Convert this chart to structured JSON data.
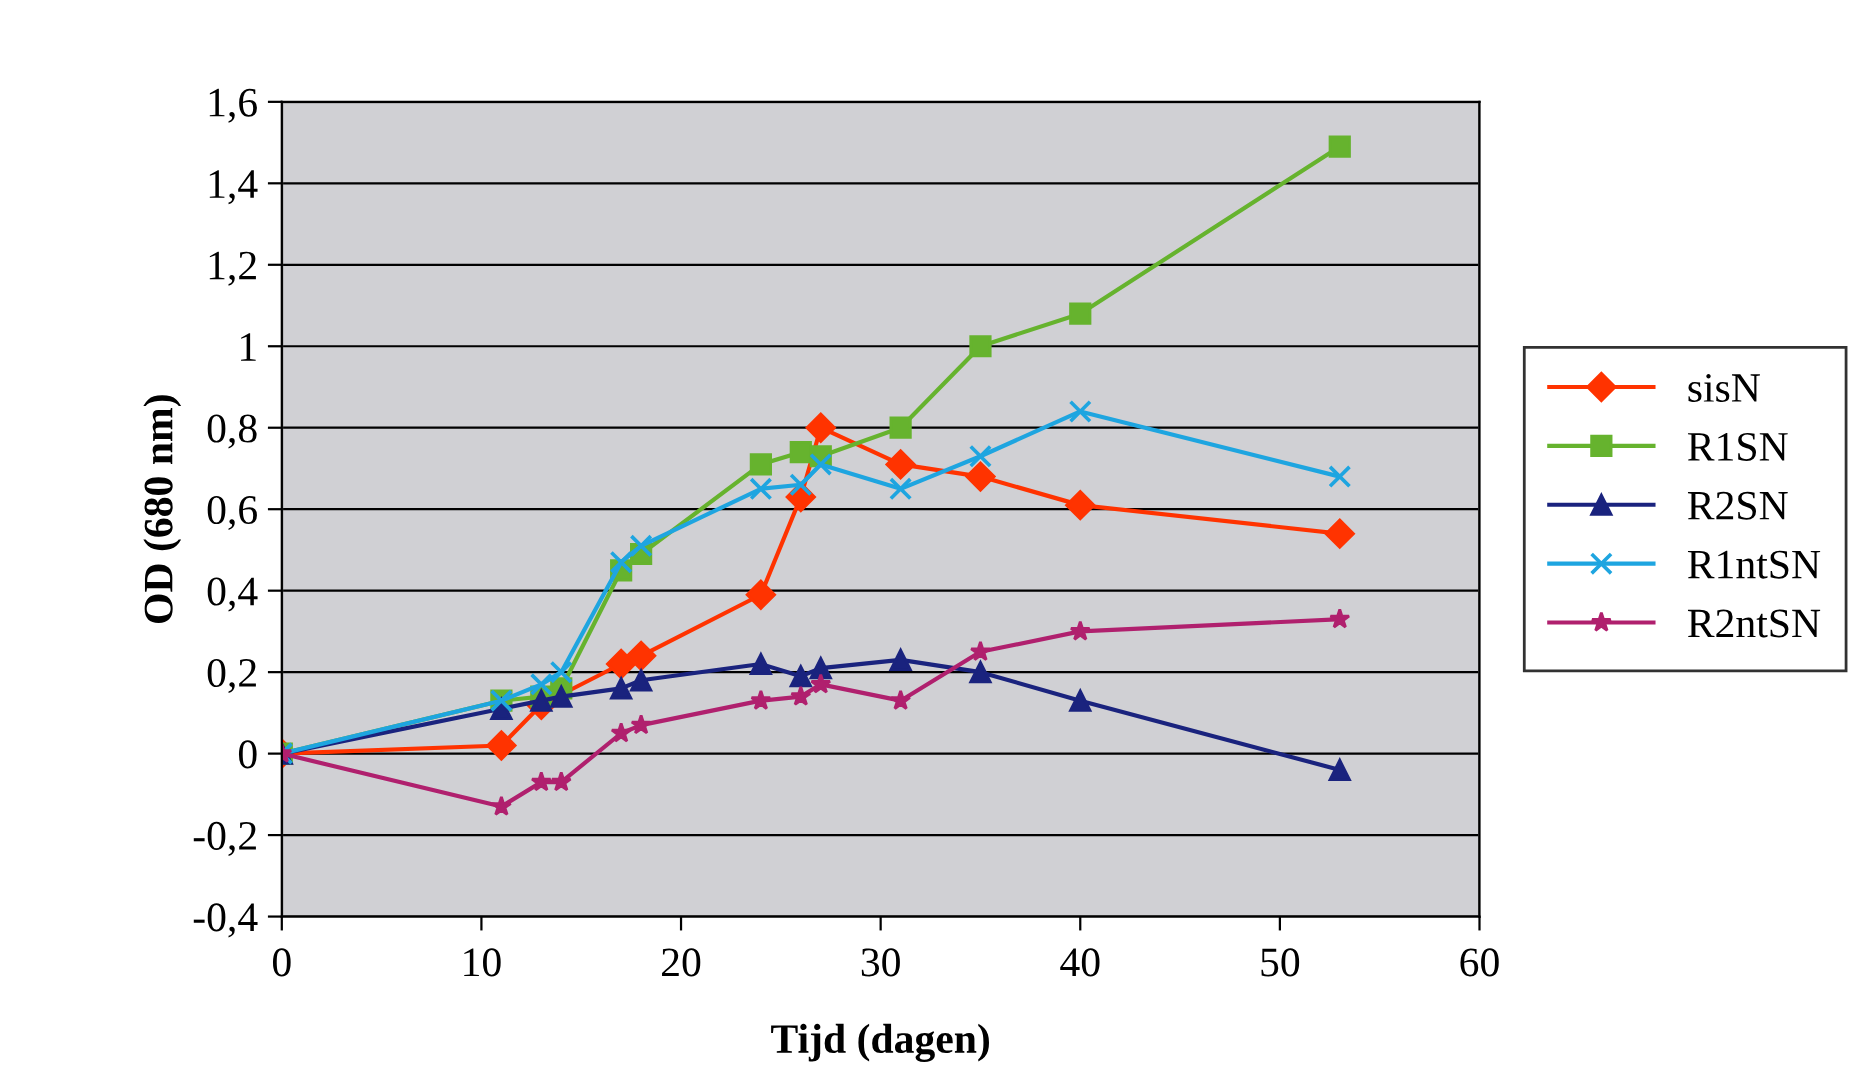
{
  "chart_data": {
    "type": "line",
    "xlabel": "Tijd (dagen)",
    "ylabel": "OD (680 nm)",
    "xlim": [
      0,
      60
    ],
    "xticks": [
      0,
      10,
      20,
      30,
      40,
      50,
      60
    ],
    "ylim": [
      -0.4,
      1.6
    ],
    "yticks": [
      {
        "value": -0.4,
        "label": "-0,4"
      },
      {
        "value": -0.2,
        "label": "-0,2"
      },
      {
        "value": 0,
        "label": "0"
      },
      {
        "value": 0.2,
        "label": "0,2"
      },
      {
        "value": 0.4,
        "label": "0,4"
      },
      {
        "value": 0.6,
        "label": "0,6"
      },
      {
        "value": 0.8,
        "label": "0,8"
      },
      {
        "value": 1,
        "label": "1"
      },
      {
        "value": 1.2,
        "label": "1,2"
      },
      {
        "value": 1.4,
        "label": "1,4"
      },
      {
        "value": 1.6,
        "label": "1,6"
      }
    ],
    "grid": "y",
    "legend": "right",
    "line_style": "solid",
    "series": [
      {
        "name": "sisN",
        "color": "#ff3300",
        "marker": "diamond",
        "x": [
          0,
          11,
          13,
          17,
          18,
          24,
          26,
          27,
          31,
          35,
          40,
          53
        ],
        "values": [
          0,
          0.02,
          0.12,
          0.22,
          0.24,
          0.39,
          0.63,
          0.8,
          0.71,
          0.68,
          0.61,
          0.54
        ]
      },
      {
        "name": "R1SN",
        "color": "#66b32e",
        "marker": "square",
        "x": [
          0,
          11,
          13,
          14,
          17,
          18,
          24,
          26,
          27,
          31,
          35,
          40,
          53
        ],
        "values": [
          0,
          0.13,
          0.14,
          0.16,
          0.45,
          0.49,
          0.71,
          0.74,
          0.73,
          0.8,
          1.0,
          1.08,
          1.49
        ]
      },
      {
        "name": "R2SN",
        "color": "#1a237e",
        "marker": "triangle",
        "x": [
          0,
          11,
          13,
          14,
          17,
          18,
          24,
          26,
          27,
          31,
          35,
          40,
          53
        ],
        "values": [
          0,
          0.11,
          0.13,
          0.14,
          0.16,
          0.18,
          0.22,
          0.19,
          0.21,
          0.23,
          0.2,
          0.13,
          -0.04
        ]
      },
      {
        "name": "R1ntSN",
        "color": "#1ea5e0",
        "marker": "cross",
        "x": [
          0,
          11,
          13,
          14,
          17,
          18,
          24,
          26,
          27,
          31,
          35,
          40,
          53
        ],
        "values": [
          0,
          0.13,
          0.17,
          0.2,
          0.47,
          0.51,
          0.65,
          0.66,
          0.71,
          0.65,
          0.73,
          0.84,
          0.68
        ]
      },
      {
        "name": "R2ntSN",
        "color": "#b0206e",
        "marker": "star",
        "x": [
          0,
          11,
          13,
          14,
          17,
          18,
          24,
          26,
          27,
          31,
          35,
          40,
          53
        ],
        "values": [
          0,
          -0.13,
          -0.07,
          -0.07,
          0.05,
          0.07,
          0.13,
          0.14,
          0.17,
          0.13,
          0.25,
          0.3,
          0.33
        ]
      }
    ]
  }
}
